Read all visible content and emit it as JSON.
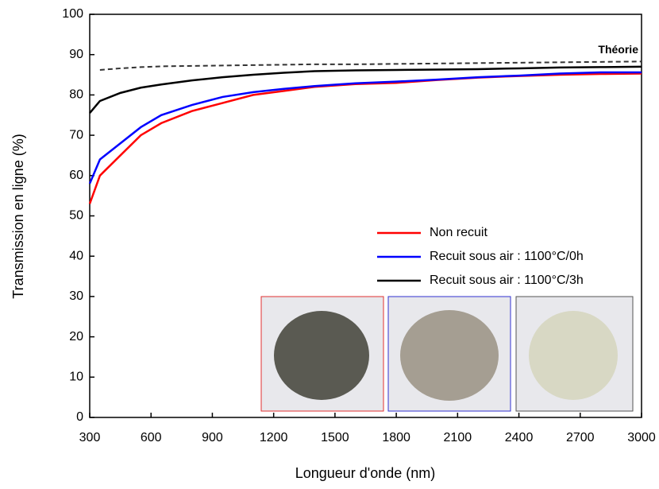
{
  "chart_data": {
    "type": "line",
    "xlabel": "Longueur d'onde (nm)",
    "ylabel": "Transmission en ligne (%)",
    "x": [
      300,
      350,
      450,
      550,
      650,
      800,
      950,
      1100,
      1250,
      1400,
      1600,
      1800,
      2000,
      2200,
      2400,
      2600,
      2800,
      3000
    ],
    "series": [
      {
        "name": "Non recuit",
        "color": "#ff0000",
        "values": [
          53,
          60,
          65,
          70,
          73,
          76,
          78,
          80,
          81,
          82,
          82.7,
          83,
          83.7,
          84.3,
          84.7,
          85,
          85.2,
          85.3
        ]
      },
      {
        "name": "Recuit sous air : 1100°C/0h",
        "color": "#0000ff",
        "values": [
          58,
          64,
          68,
          72,
          75,
          77.5,
          79.5,
          80.7,
          81.5,
          82.2,
          82.9,
          83.3,
          83.8,
          84.4,
          84.8,
          85.3,
          85.6,
          85.6
        ]
      },
      {
        "name": "Recuit sous air : 1100°C/3h",
        "color": "#000000",
        "values": [
          75.5,
          78.5,
          80.5,
          81.8,
          82.6,
          83.6,
          84.4,
          85,
          85.5,
          85.9,
          86.1,
          86.2,
          86.3,
          86.4,
          86.6,
          86.8,
          86.9,
          87
        ]
      },
      {
        "name": "Théorie",
        "color": "#333333",
        "dash": true,
        "values": [
          null,
          86.2,
          86.6,
          86.9,
          87.1,
          87.2,
          87.3,
          87.4,
          87.5,
          87.6,
          87.6,
          87.7,
          87.8,
          87.9,
          88,
          88.1,
          88.2,
          88.3
        ]
      }
    ],
    "xlim": [
      300,
      3000
    ],
    "xticks": [
      300,
      600,
      900,
      1200,
      1500,
      1800,
      2100,
      2400,
      2700,
      3000
    ],
    "ylim": [
      0,
      100
    ],
    "yticks": [
      0,
      10,
      20,
      30,
      40,
      50,
      60,
      70,
      80,
      90,
      100
    ],
    "legend": "center right"
  }
}
